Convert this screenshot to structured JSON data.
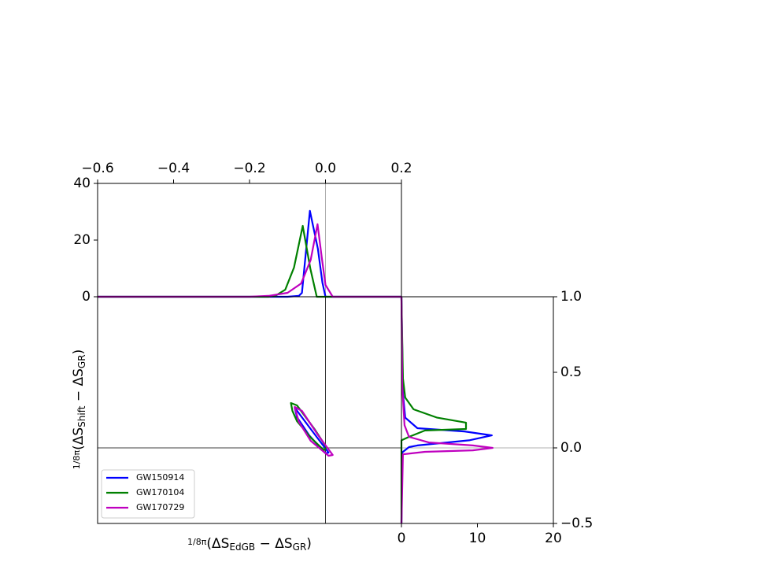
{
  "chart_data": [
    {
      "type": "line",
      "xaxis_side": "top",
      "yaxis_side": "left",
      "xlim": [
        -0.6,
        0.2
      ],
      "xticks": [
        {
          "value": -0.6,
          "label": "−0.6"
        },
        {
          "value": -0.4,
          "label": "−0.4"
        },
        {
          "value": -0.2,
          "label": "−0.2"
        },
        {
          "value": 0,
          "label": "0.0"
        },
        0.2
      ],
      "ylim": [
        0,
        40
      ],
      "yticks": [
        0,
        20,
        40
      ],
      "vlines": [
        0
      ],
      "series": [
        {
          "color": "#0000ff",
          "x": [
            -0.6,
            -0.1,
            -0.07,
            -0.062,
            -0.041,
            -0.02,
            -0.008,
            0,
            0.2
          ],
          "values": [
            0,
            0,
            0.3,
            1.4,
            30.3,
            17,
            5,
            0,
            0
          ]
        },
        {
          "color": "#008000",
          "x": [
            -0.6,
            -0.15,
            -0.13,
            -0.106,
            -0.083,
            -0.06,
            -0.04,
            -0.023,
            0.2
          ],
          "values": [
            0,
            0,
            0.5,
            2.5,
            10.3,
            25,
            10,
            0,
            0
          ]
        },
        {
          "color": "#bf00bf",
          "x": [
            -0.6,
            -0.2,
            -0.15,
            -0.1,
            -0.064,
            -0.039,
            -0.021,
            -0.01,
            0,
            0.019,
            0.2
          ],
          "values": [
            0,
            0,
            0.3,
            1.4,
            4.7,
            13,
            25.6,
            14,
            4.2,
            0,
            0
          ]
        }
      ]
    },
    {
      "type": "contour",
      "xaxis_side": "none",
      "yaxis_side": "none",
      "xlim": [
        -0.6,
        0.2
      ],
      "ylim": [
        -0.5,
        1.0
      ],
      "hlines": [
        0
      ],
      "vlines": [
        0
      ],
      "xlabel": [
        "1/8π",
        "(ΔS",
        "EdGB",
        " − ΔS",
        "GR",
        ")"
      ],
      "ylabel": [
        "1/8π",
        "(ΔS",
        "Shift",
        " − ΔS",
        "GR",
        ")"
      ],
      "legend": "lower left",
      "series": [
        {
          "name": "GW150914",
          "color": "#0000ff",
          "x": [
            -0.081,
            -0.039,
            0.008,
            0,
            -0.043,
            -0.075
          ],
          "values": [
            0.266,
            0.125,
            -0.031,
            -0.036,
            0.083,
            0.203
          ]
        },
        {
          "name": "GW170104",
          "color": "#008000",
          "x": [
            -0.091,
            -0.075,
            -0.029,
            0.002,
            -0.004,
            -0.039,
            -0.075,
            -0.087
          ],
          "values": [
            0.297,
            0.281,
            0.125,
            0.005,
            -0.016,
            0.068,
            0.177,
            0.245
          ]
        },
        {
          "name": "GW170729",
          "color": "#bf00bf",
          "x": [
            -0.081,
            -0.062,
            -0.019,
            0.019,
            0.008,
            -0.039,
            -0.07
          ],
          "values": [
            0.271,
            0.245,
            0.083,
            -0.047,
            -0.052,
            0.047,
            0.172
          ]
        }
      ]
    },
    {
      "type": "line",
      "orientation": "horizontal",
      "xaxis_side": "bottom",
      "yaxis_side": "right",
      "xlim": [
        0,
        20
      ],
      "xticks": [
        0,
        10,
        20
      ],
      "ylim": [
        -0.5,
        1.0
      ],
      "yticks": [
        {
          "value": -0.5,
          "label": "−0.5"
        },
        {
          "value": 0,
          "label": "0.0"
        },
        0.5,
        {
          "value": 1,
          "label": "1.0"
        }
      ],
      "hlines": [
        0
      ],
      "series": [
        {
          "color": "#0000ff",
          "y": [
            -0.5,
            -0.03,
            0.005,
            0.016,
            0.05,
            0.083,
            0.109,
            0.13,
            0.2,
            0.36,
            1
          ],
          "values": [
            0,
            0.1,
            1,
            2.1,
            8.9,
            11.9,
            8.3,
            2.1,
            0.5,
            0.2,
            0
          ]
        },
        {
          "color": "#008000",
          "y": [
            -0.5,
            0.05,
            0.073,
            0.115,
            0.125,
            0.167,
            0.2,
            0.255,
            0.333,
            0.46,
            1
          ],
          "values": [
            0,
            0,
            1,
            3.1,
            8.5,
            8.5,
            4.7,
            1.6,
            0.5,
            0.2,
            0
          ]
        },
        {
          "color": "#bf00bf",
          "y": [
            -0.5,
            -0.042,
            -0.026,
            -0.016,
            0,
            0.016,
            0.036,
            0.073,
            0.15,
            0.41,
            1
          ],
          "values": [
            0,
            0.2,
            3.1,
            9.4,
            12,
            9.4,
            3.6,
            1,
            0.4,
            0.1,
            0
          ]
        }
      ]
    }
  ]
}
